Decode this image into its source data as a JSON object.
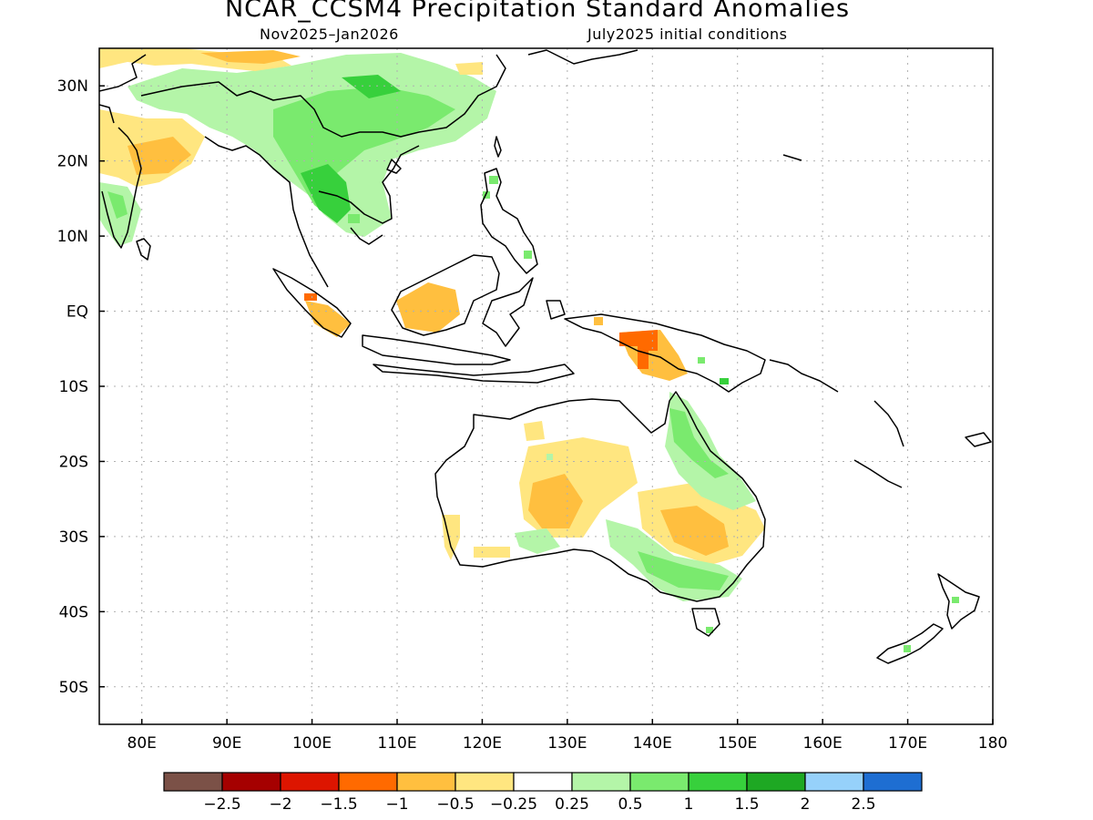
{
  "title": "NCAR_CCSM4 Precipitation Standard Anomalies",
  "subtitle_left": "Nov2025–Jan2026",
  "subtitle_right": "July2025 initial conditions",
  "map": {
    "projection": "lat-lon",
    "lon_range": [
      75,
      180
    ],
    "lat_range": [
      -55,
      35
    ],
    "lat_ticks": [
      {
        "lat": 30,
        "label": "30N"
      },
      {
        "lat": 20,
        "label": "20N"
      },
      {
        "lat": 10,
        "label": "10N"
      },
      {
        "lat": 0,
        "label": "EQ"
      },
      {
        "lat": -10,
        "label": "10S"
      },
      {
        "lat": -20,
        "label": "20S"
      },
      {
        "lat": -30,
        "label": "30S"
      },
      {
        "lat": -40,
        "label": "40S"
      },
      {
        "lat": -50,
        "label": "50S"
      }
    ],
    "lon_ticks": [
      {
        "lon": 80,
        "label": "80E"
      },
      {
        "lon": 90,
        "label": "90E"
      },
      {
        "lon": 100,
        "label": "100E"
      },
      {
        "lon": 110,
        "label": "110E"
      },
      {
        "lon": 120,
        "label": "120E"
      },
      {
        "lon": 130,
        "label": "130E"
      },
      {
        "lon": 140,
        "label": "140E"
      },
      {
        "lon": 150,
        "label": "150E"
      },
      {
        "lon": 160,
        "label": "160E"
      },
      {
        "lon": 170,
        "label": "170E"
      },
      {
        "lon": 180,
        "label": "180"
      }
    ],
    "grid": "dotted"
  },
  "colorbar": {
    "colors": [
      "#7b5147",
      "#a50000",
      "#dd1500",
      "#ff6a00",
      "#ffbf3f",
      "#ffe680",
      "#ffffff",
      "#b4f5a8",
      "#7aea6e",
      "#37d03c",
      "#1ea823",
      "#96d1fa",
      "#1e6ed2"
    ],
    "labels": [
      "−2.5",
      "−2",
      "−1.5",
      "−1",
      "−0.5",
      "−0.25",
      "0.25",
      "0.5",
      "1",
      "1.5",
      "2",
      "2.5"
    ]
  }
}
